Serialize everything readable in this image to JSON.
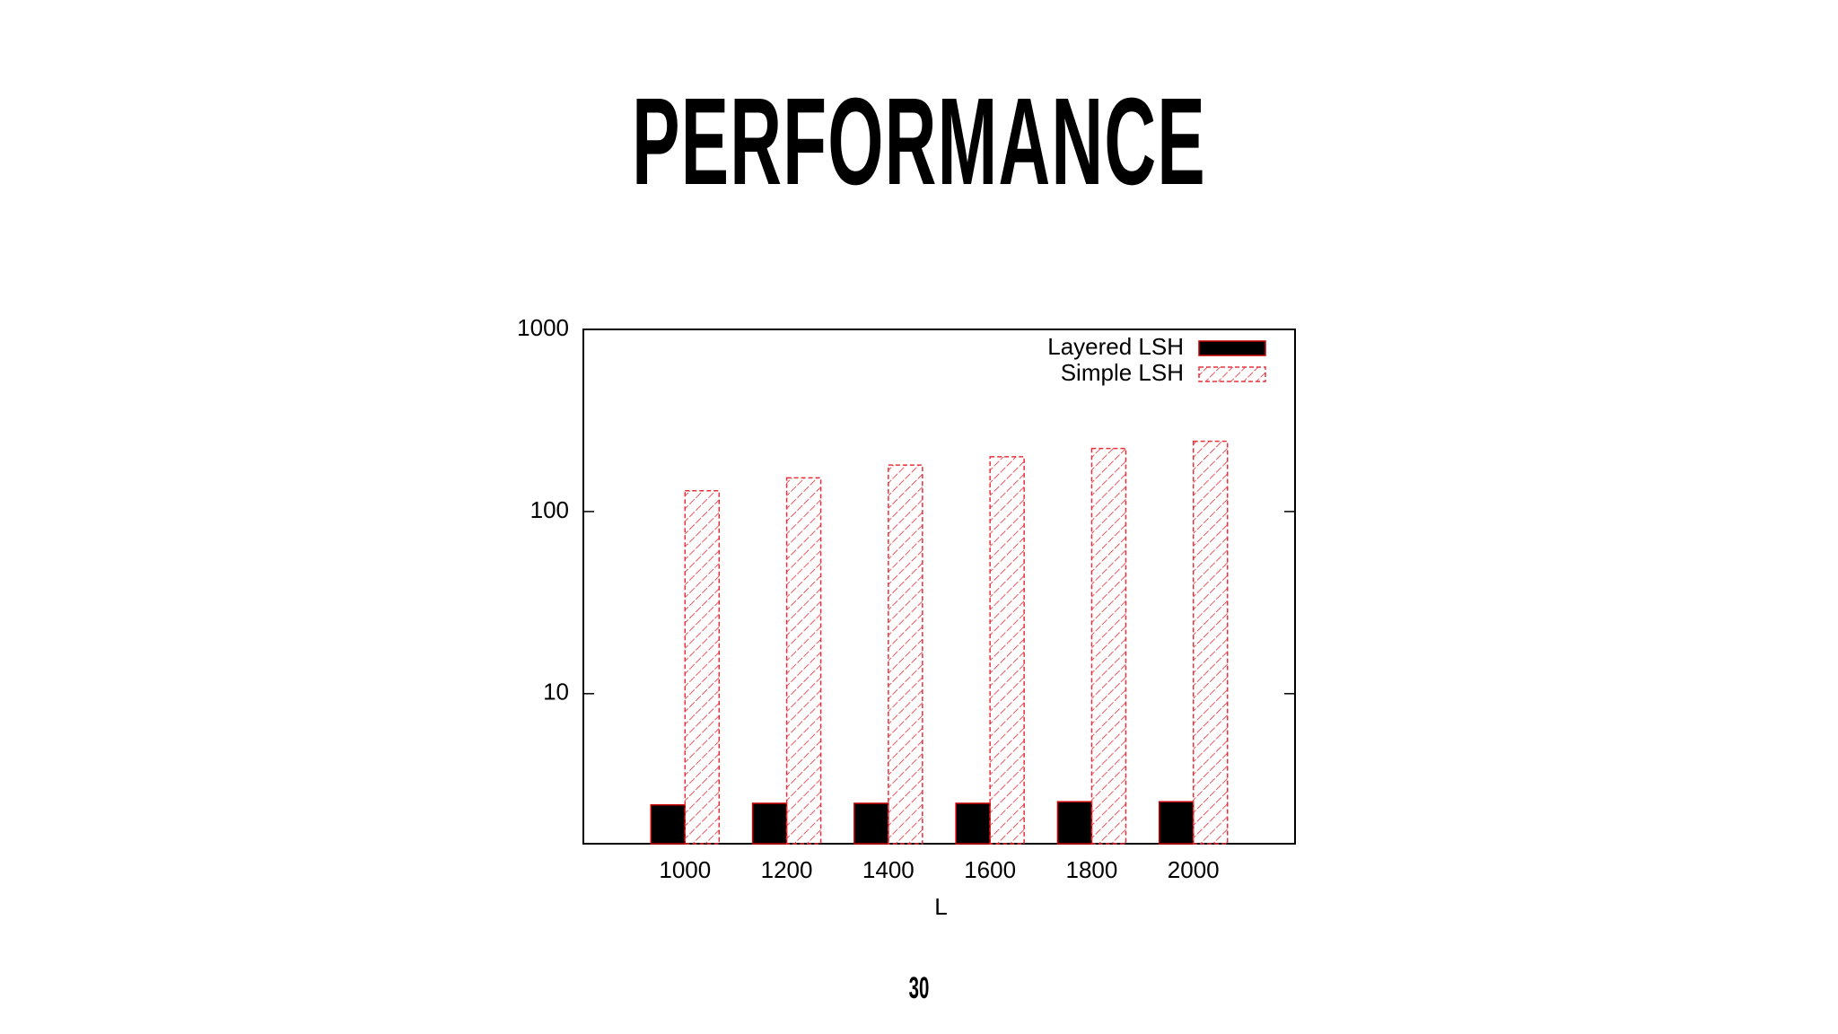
{
  "slide": {
    "title": "PERFORMANCE",
    "page_number": "30"
  },
  "chart_data": {
    "type": "bar",
    "log_scale": true,
    "grid": false,
    "legend_position": "top-right",
    "x_label": "L",
    "categories": [
      "1000",
      "1200",
      "1400",
      "1600",
      "1800",
      "2000"
    ],
    "series": [
      {
        "name": "Layered LSH",
        "color": "#000000",
        "values": [
          2.45,
          2.5,
          2.5,
          2.5,
          2.55,
          2.55
        ]
      },
      {
        "name": "Simple LSH",
        "color": "#e8303a",
        "hatch": true,
        "values": [
          130,
          153,
          180,
          200,
          222,
          243
        ]
      }
    ],
    "ylim": [
      1.5,
      1000
    ],
    "yticks": [
      10,
      100,
      1000
    ]
  }
}
